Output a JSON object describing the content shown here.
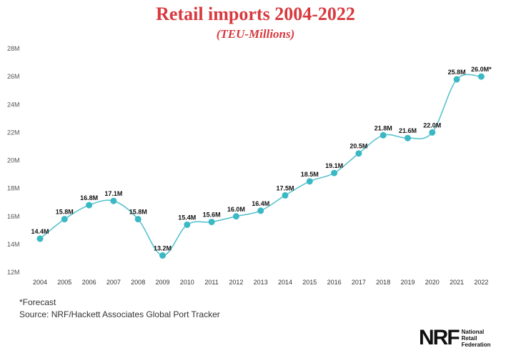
{
  "chart_data": {
    "type": "line",
    "title": "Retail imports 2004-2022",
    "subtitle": "(TEU-Millions)",
    "categories": [
      "2004",
      "2005",
      "2006",
      "2007",
      "2008",
      "2009",
      "2010",
      "2011",
      "2012",
      "2013",
      "2014",
      "2015",
      "2016",
      "2017",
      "2018",
      "2019",
      "2020",
      "2021",
      "2022"
    ],
    "values": [
      14.4,
      15.8,
      16.8,
      17.1,
      15.8,
      13.2,
      15.4,
      15.6,
      16.0,
      16.4,
      17.5,
      18.5,
      19.1,
      20.5,
      21.8,
      21.6,
      22.0,
      25.8,
      26.0
    ],
    "labels": [
      "14.4M",
      "15.8M",
      "16.8M",
      "17.1M",
      "15.8M",
      "13.2M",
      "15.4M",
      "15.6M",
      "16.0M",
      "16.4M",
      "17.5M",
      "18.5M",
      "19.1M",
      "20.5M",
      "21.8M",
      "21.6M",
      "22.0M",
      "25.8M",
      "26.0M*"
    ],
    "yticks": [
      12,
      14,
      16,
      18,
      20,
      22,
      24,
      26,
      28
    ],
    "ytick_labels": [
      "12M",
      "14M",
      "16M",
      "18M",
      "20M",
      "22M",
      "24M",
      "26M",
      "28M"
    ],
    "ylim": [
      12,
      28
    ],
    "grid": false,
    "line_color": "#4fbfcb",
    "marker_color": "#3ab8c4"
  },
  "footnote": "*Forecast",
  "source": "Source: NRF/Hackett Associates Global Port Tracker",
  "logo": {
    "mark": "NRF",
    "lines": [
      "National",
      "Retail",
      "Federation"
    ]
  },
  "colors": {
    "title": "#d8393e",
    "text": "#333333"
  }
}
